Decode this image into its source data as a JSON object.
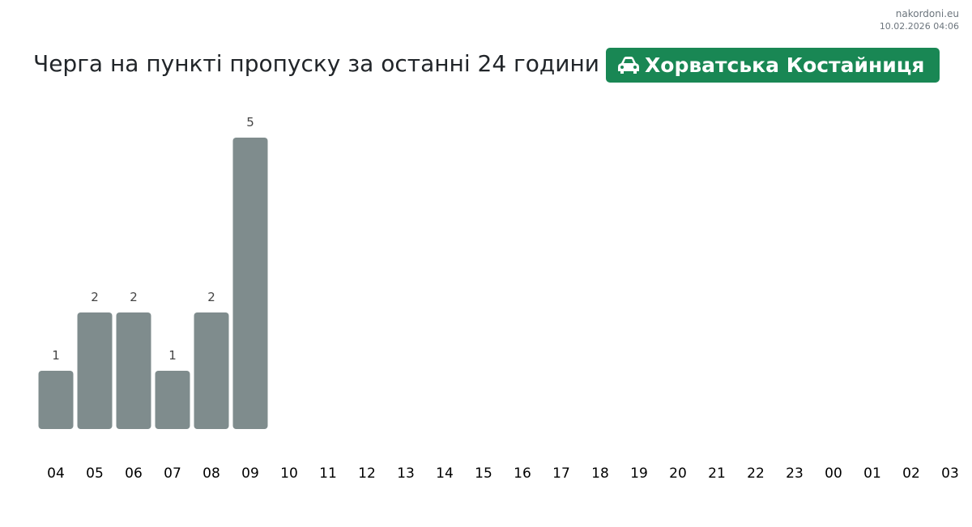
{
  "header": {
    "source": "nakordoni.eu",
    "timestamp": "10.02.2026 04:06",
    "title": "Черга на пункті пропуску за останні 24 години",
    "location": "Хорватська Костайниця",
    "location_color": "#198754"
  },
  "chart_data": {
    "type": "bar",
    "categories": [
      "04",
      "05",
      "06",
      "07",
      "08",
      "09",
      "10",
      "11",
      "12",
      "13",
      "14",
      "15",
      "16",
      "17",
      "18",
      "19",
      "20",
      "21",
      "22",
      "23",
      "00",
      "01",
      "02",
      "03"
    ],
    "values": [
      1,
      2,
      2,
      1,
      2,
      5,
      null,
      null,
      null,
      null,
      null,
      null,
      null,
      null,
      null,
      null,
      null,
      null,
      null,
      null,
      null,
      null,
      null,
      null
    ],
    "color": "#7f8c8d"
  }
}
